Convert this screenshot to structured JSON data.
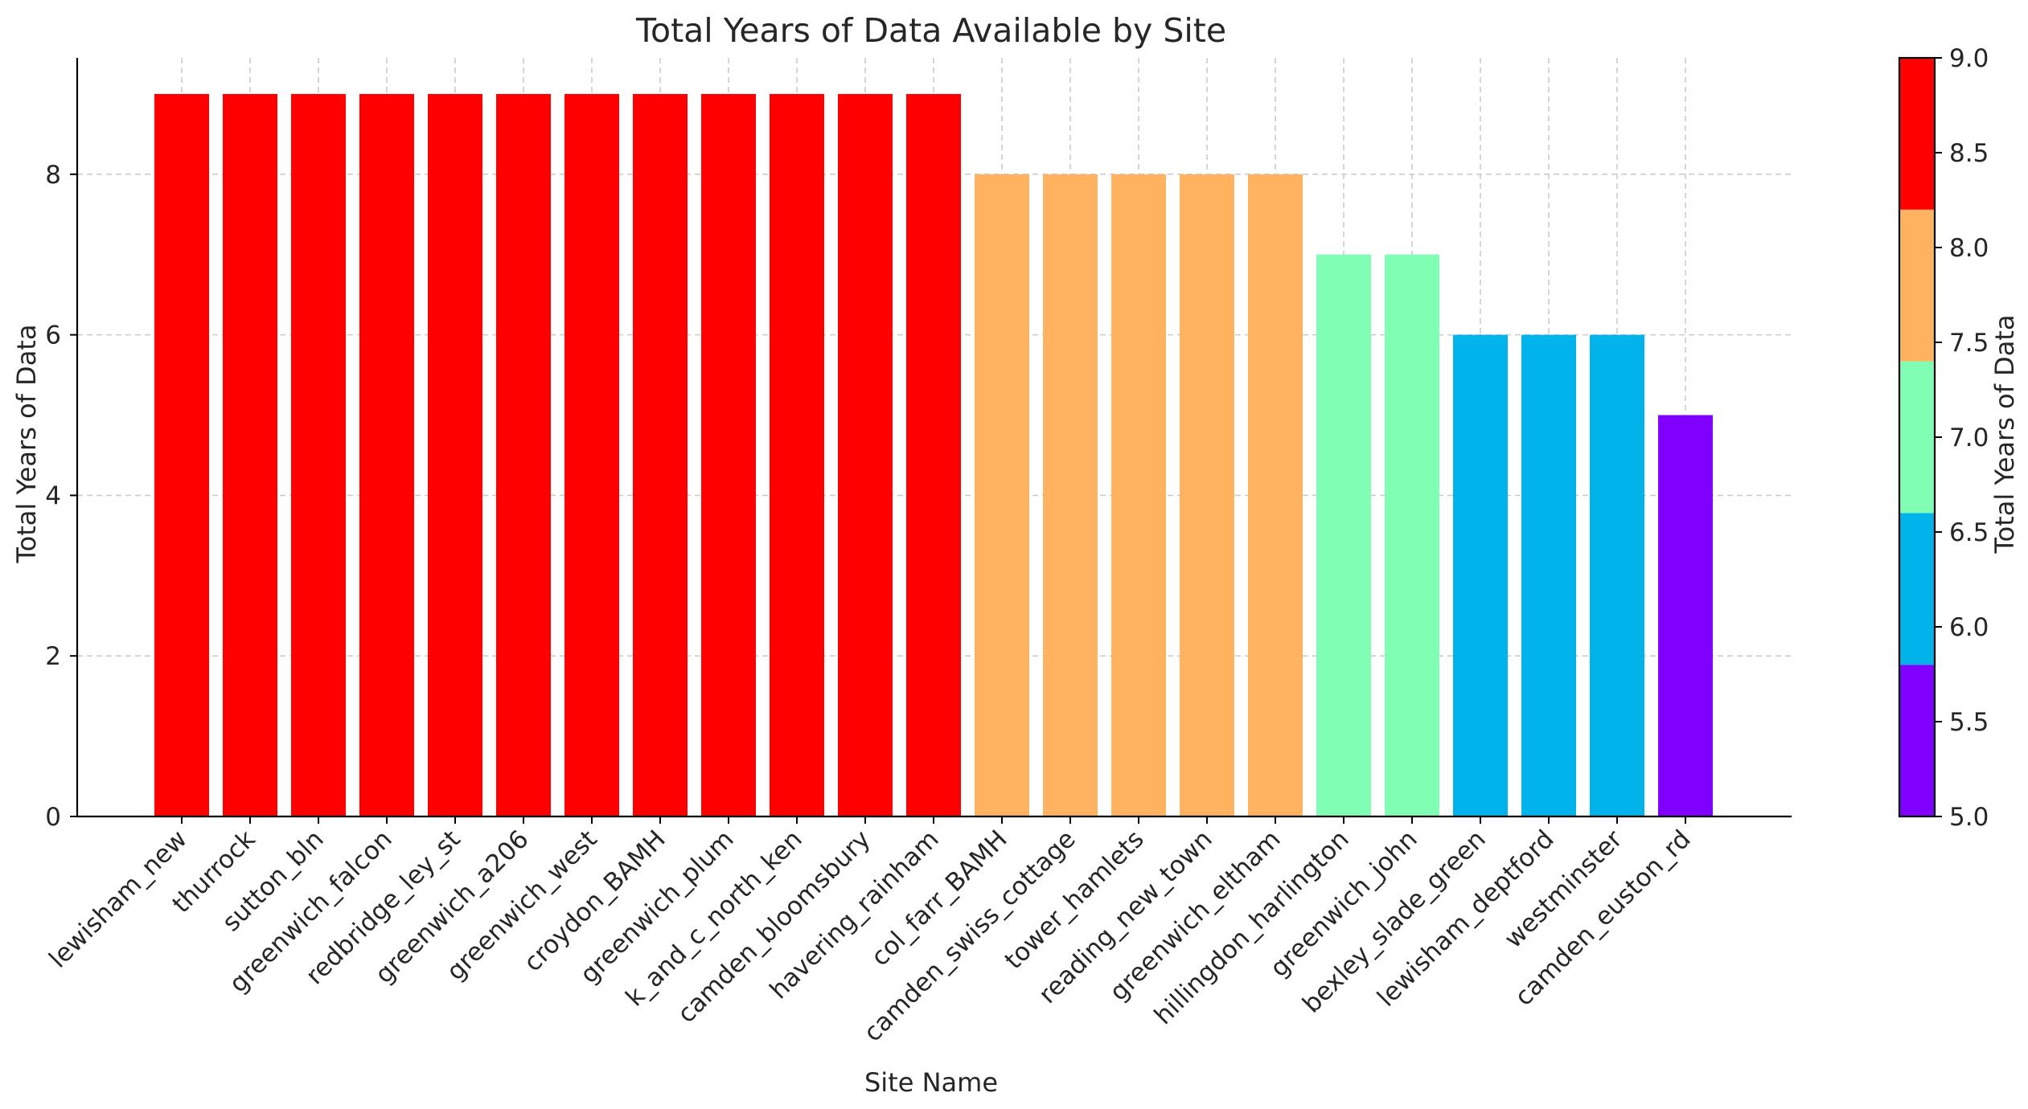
{
  "chart_data": {
    "type": "bar",
    "title": "Total Years of Data Available by Site",
    "xlabel": "Site Name",
    "ylabel": "Total Years of Data",
    "categories": [
      "lewisham_new",
      "thurrock",
      "sutton_bln",
      "greenwich_falcon",
      "redbridge_ley_st",
      "greenwich_a206",
      "greenwich_west",
      "croydon_BAMH",
      "greenwich_plum",
      "k_and_c_north_ken",
      "camden_bloomsbury",
      "havering_rainham",
      "col_farr_BAMH",
      "camden_swiss_cottage",
      "tower_hamlets",
      "reading_new_town",
      "greenwich_eltham",
      "hillingdon_harlington",
      "greenwich_john",
      "bexley_slade_green",
      "lewisham_deptford",
      "westminster",
      "camden_euston_rd"
    ],
    "values": [
      9,
      9,
      9,
      9,
      9,
      9,
      9,
      9,
      9,
      9,
      9,
      9,
      8,
      8,
      8,
      8,
      8,
      7,
      7,
      6,
      6,
      6,
      5
    ],
    "ylim": [
      0,
      9.45
    ],
    "yticks": [
      0,
      2,
      4,
      6,
      8
    ],
    "ytick_labels": [
      "0",
      "2",
      "4",
      "6",
      "8"
    ],
    "grid": true,
    "colorbar": {
      "label": "Total Years of Data",
      "range": [
        5.0,
        9.0
      ],
      "ticks": [
        5.0,
        5.5,
        6.0,
        6.5,
        7.0,
        7.5,
        8.0,
        8.5,
        9.0
      ],
      "tick_labels": [
        "5.0",
        "5.5",
        "6.0",
        "6.5",
        "7.0",
        "7.5",
        "8.0",
        "8.5",
        "9.0"
      ],
      "bands": [
        {
          "from": 5.0,
          "to": 5.8,
          "color": "#8000ff"
        },
        {
          "from": 5.8,
          "to": 6.6,
          "color": "#00b4eb"
        },
        {
          "from": 6.6,
          "to": 7.4,
          "color": "#80ffb4"
        },
        {
          "from": 7.4,
          "to": 8.2,
          "color": "#ffb360"
        },
        {
          "from": 8.2,
          "to": 9.0,
          "color": "#ff0000"
        }
      ]
    },
    "value_colors": {
      "5": "#8000ff",
      "6": "#00b4eb",
      "7": "#80ffb4",
      "8": "#ffb360",
      "9": "#ff0000"
    }
  }
}
